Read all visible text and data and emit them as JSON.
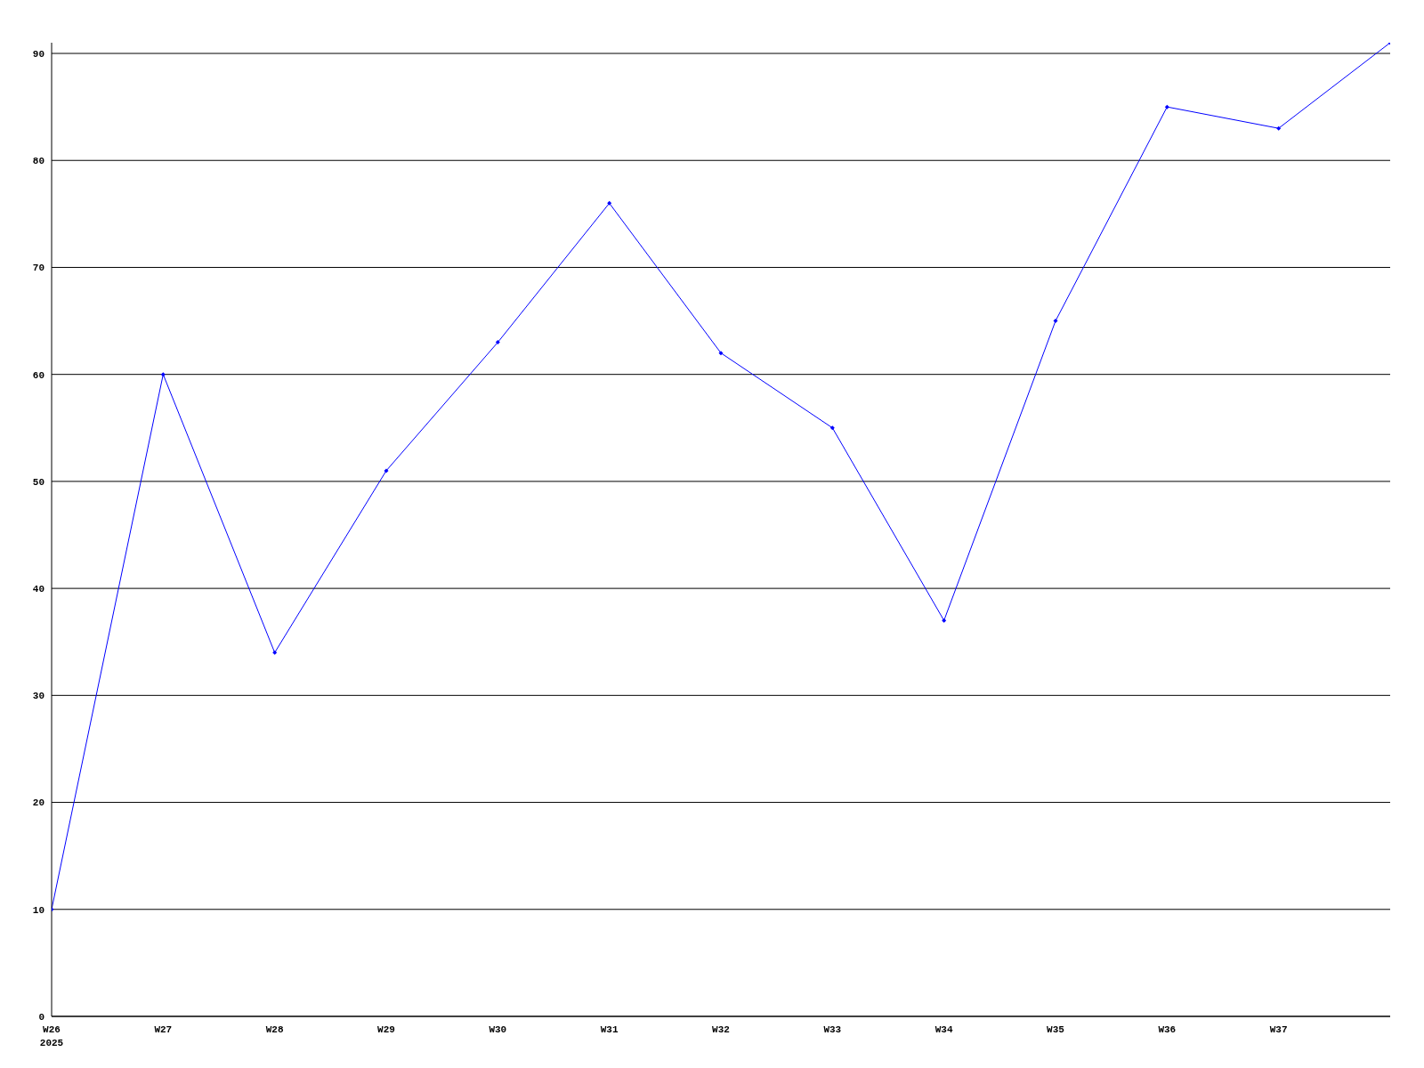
{
  "chart_data": {
    "type": "line",
    "categories": [
      "W26",
      "W27",
      "W28",
      "W29",
      "W30",
      "W31",
      "W32",
      "W33",
      "W34",
      "W35",
      "W36",
      "W37",
      null
    ],
    "series": [
      {
        "color": "#0000ff",
        "values": [
          10,
          60,
          34,
          51,
          63,
          76,
          62,
          55,
          37,
          65,
          85,
          83,
          91
        ]
      }
    ],
    "ylim": [
      0,
      91
    ],
    "yticks": [
      0,
      10,
      20,
      30,
      40,
      50,
      60,
      70,
      80,
      90
    ],
    "grid": "y",
    "marker": "diamond",
    "line_style": "solid",
    "annotations": [
      "2025"
    ]
  }
}
